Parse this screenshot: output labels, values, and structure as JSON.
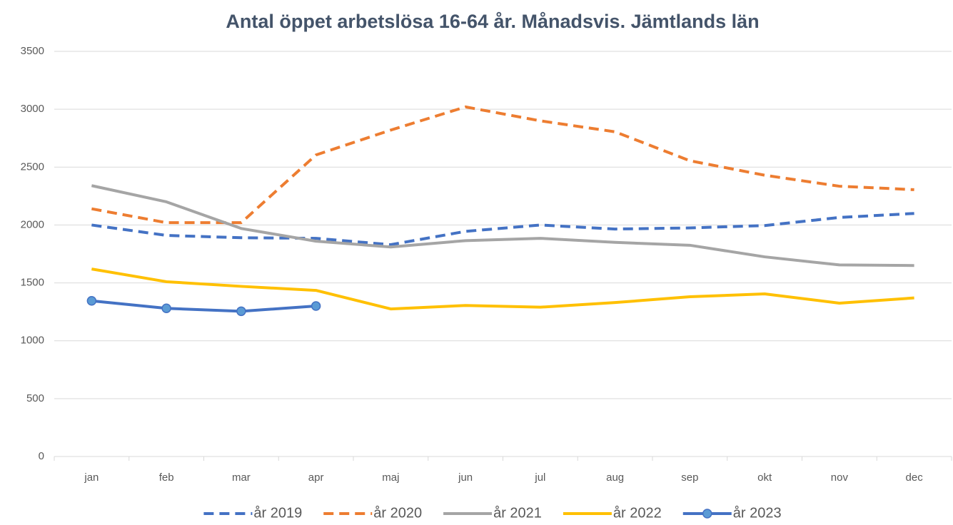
{
  "chart_data": {
    "type": "line",
    "title": "Antal öppet arbetslösa 16-64 år. Månadsvis. Jämtlands län",
    "categories": [
      "jan",
      "feb",
      "mar",
      "apr",
      "maj",
      "jun",
      "jul",
      "aug",
      "sep",
      "okt",
      "nov",
      "dec"
    ],
    "series": [
      {
        "name": "år 2019",
        "color": "#4472c4",
        "dash": true,
        "marker": false,
        "values": [
          2000,
          1910,
          1890,
          1885,
          1830,
          1945,
          2000,
          1965,
          1975,
          1995,
          2065,
          2100
        ]
      },
      {
        "name": "år 2020",
        "color": "#ed7d31",
        "dash": true,
        "marker": false,
        "values": [
          2140,
          2020,
          2020,
          2605,
          2820,
          3020,
          2900,
          2805,
          2555,
          2430,
          2335,
          2305
        ]
      },
      {
        "name": "år 2021",
        "color": "#a5a5a5",
        "dash": false,
        "marker": false,
        "values": [
          2340,
          2200,
          1970,
          1860,
          1810,
          1865,
          1885,
          1850,
          1825,
          1725,
          1655,
          1650
        ]
      },
      {
        "name": "år 2022",
        "color": "#ffc000",
        "dash": false,
        "marker": false,
        "values": [
          1620,
          1510,
          1470,
          1435,
          1275,
          1305,
          1290,
          1330,
          1380,
          1405,
          1325,
          1370
        ]
      },
      {
        "name": "år 2023",
        "color": "#4472c4",
        "dash": false,
        "marker": true,
        "values": [
          1345,
          1280,
          1255,
          1300,
          null,
          null,
          null,
          null,
          null,
          null,
          null,
          null
        ]
      }
    ],
    "ylim": [
      0,
      3500
    ],
    "yticks": [
      0,
      500,
      1000,
      1500,
      2000,
      2500,
      3000,
      3500
    ],
    "grid": true,
    "legend": "bottom"
  }
}
